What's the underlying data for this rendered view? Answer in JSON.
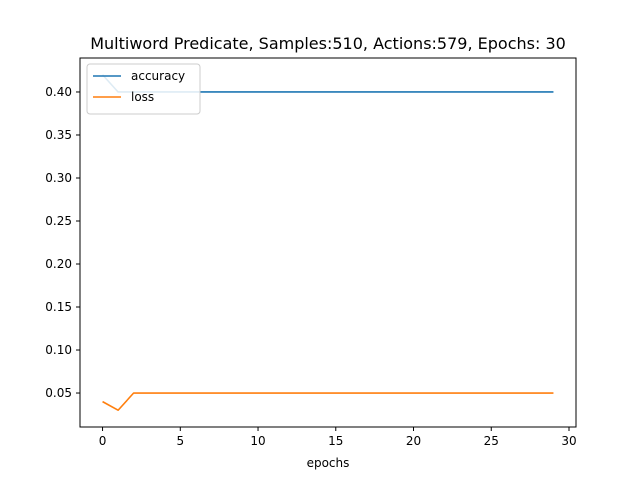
{
  "chart_data": {
    "type": "line",
    "title": "Multiword Predicate, Samples:510, Actions:579, Epochs: 30",
    "xlabel": "epochs",
    "ylabel": "",
    "xlim": [
      -1.45,
      30.45
    ],
    "ylim": [
      0.0105,
      0.4395
    ],
    "xticks": [
      0,
      5,
      10,
      15,
      20,
      25,
      30
    ],
    "xtick_labels": [
      "0",
      "5",
      "10",
      "15",
      "20",
      "25",
      "30"
    ],
    "yticks": [
      0.05,
      0.1,
      0.15,
      0.2,
      0.25,
      0.3,
      0.35,
      0.4
    ],
    "ytick_labels": [
      "0.05",
      "0.10",
      "0.15",
      "0.20",
      "0.25",
      "0.30",
      "0.35",
      "0.40"
    ],
    "grid": false,
    "legend_position": "upper-left",
    "x": [
      0,
      1,
      2,
      3,
      4,
      5,
      6,
      7,
      8,
      9,
      10,
      11,
      12,
      13,
      14,
      15,
      16,
      17,
      18,
      19,
      20,
      21,
      22,
      23,
      24,
      25,
      26,
      27,
      28,
      29
    ],
    "series": [
      {
        "name": "accuracy",
        "color": "#1f77b4",
        "values": [
          0.42,
          0.4,
          0.4,
          0.4,
          0.4,
          0.4,
          0.4,
          0.4,
          0.4,
          0.4,
          0.4,
          0.4,
          0.4,
          0.4,
          0.4,
          0.4,
          0.4,
          0.4,
          0.4,
          0.4,
          0.4,
          0.4,
          0.4,
          0.4,
          0.4,
          0.4,
          0.4,
          0.4,
          0.4,
          0.4
        ]
      },
      {
        "name": "loss",
        "color": "#ff7f0e",
        "values": [
          0.04,
          0.03,
          0.05,
          0.05,
          0.05,
          0.05,
          0.05,
          0.05,
          0.05,
          0.05,
          0.05,
          0.05,
          0.05,
          0.05,
          0.05,
          0.05,
          0.05,
          0.05,
          0.05,
          0.05,
          0.05,
          0.05,
          0.05,
          0.05,
          0.05,
          0.05,
          0.05,
          0.05,
          0.05,
          0.05
        ]
      }
    ]
  }
}
